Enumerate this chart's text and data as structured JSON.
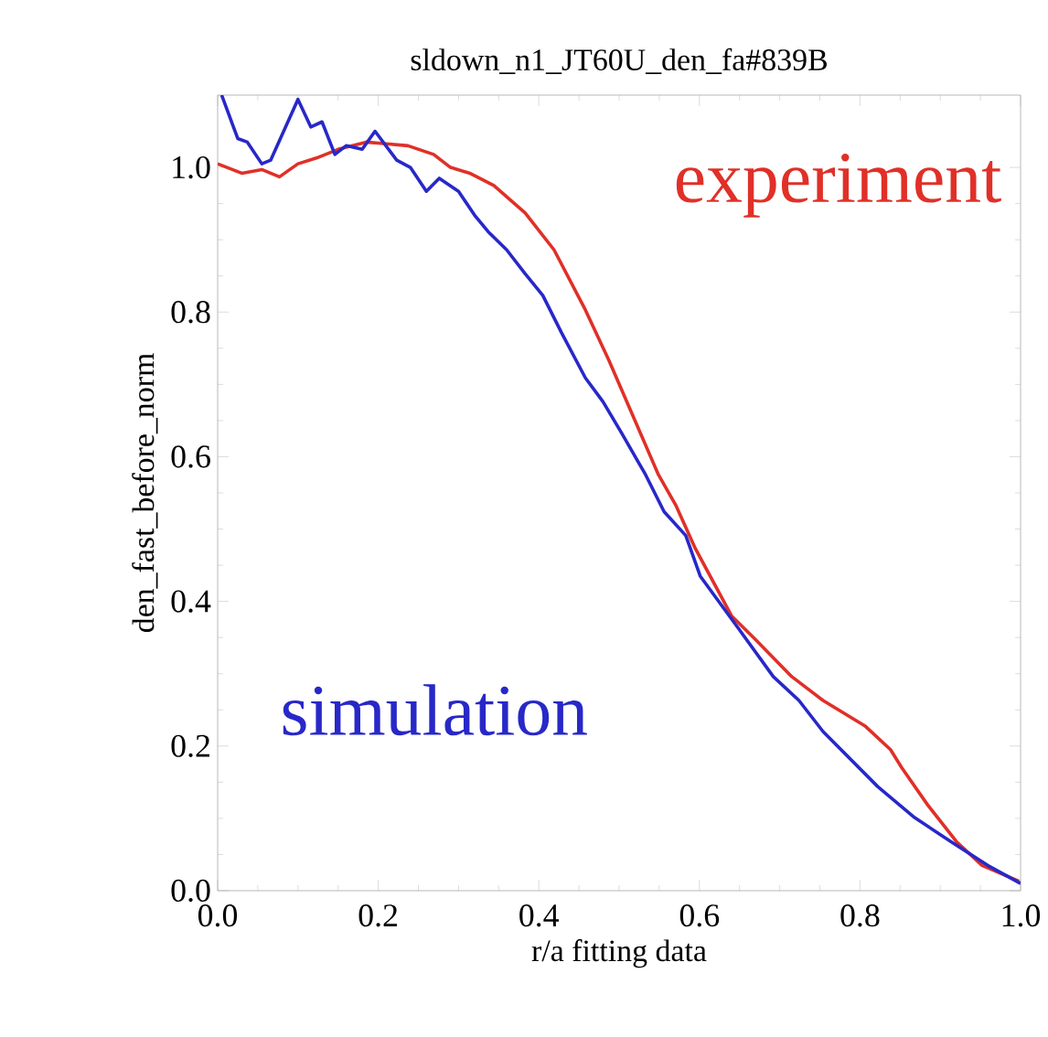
{
  "chart_data": {
    "type": "line",
    "title": "sldown_n1_JT60U_den_fa#839B",
    "xlabel": "r/a fitting data",
    "ylabel": "den_fast_before_norm",
    "xlim": [
      0,
      1
    ],
    "ylim": [
      0,
      1.1
    ],
    "xticks": [
      {
        "value": 0,
        "label": "0.0"
      },
      {
        "value": 0.2,
        "label": "0.2"
      },
      {
        "value": 0.4,
        "label": "0.4"
      },
      {
        "value": 0.6,
        "label": "0.6"
      },
      {
        "value": 0.8,
        "label": "0.8"
      },
      {
        "value": 1,
        "label": "1.0"
      }
    ],
    "yticks": [
      {
        "value": 0,
        "label": "0.0"
      },
      {
        "value": 0.2,
        "label": "0.2"
      },
      {
        "value": 0.4,
        "label": "0.4"
      },
      {
        "value": 0.6,
        "label": "0.6"
      },
      {
        "value": 0.8,
        "label": "0.8"
      },
      {
        "value": 1,
        "label": "1.0"
      }
    ],
    "legend": false,
    "grid": false,
    "marker": "none",
    "line_style": "solid",
    "series": [
      {
        "name": "experiment",
        "color": "#e03028",
        "x": [
          0,
          0.03,
          0.055,
          0.077,
          0.1,
          0.123,
          0.15,
          0.185,
          0.207,
          0.237,
          0.269,
          0.29,
          0.314,
          0.344,
          0.383,
          0.419,
          0.458,
          0.487,
          0.549,
          0.571,
          0.595,
          0.64,
          0.67,
          0.715,
          0.754,
          0.806,
          0.838,
          0.852,
          0.884,
          0.92,
          0.952,
          0.998
        ],
        "values": [
          1.005,
          0.992,
          0.997,
          0.987,
          1.005,
          1.013,
          1.025,
          1.035,
          1.033,
          1.03,
          1.018,
          1.0,
          0.992,
          0.975,
          0.937,
          0.886,
          0.803,
          0.734,
          0.575,
          0.532,
          0.473,
          0.38,
          0.347,
          0.296,
          0.263,
          0.228,
          0.195,
          0.17,
          0.119,
          0.068,
          0.035,
          0.013
        ]
      },
      {
        "name": "simulation",
        "color": "#2828c8",
        "x": [
          0.005,
          0.025,
          0.037,
          0.055,
          0.066,
          0.1,
          0.116,
          0.13,
          0.146,
          0.16,
          0.18,
          0.196,
          0.223,
          0.24,
          0.26,
          0.276,
          0.3,
          0.32,
          0.337,
          0.36,
          0.383,
          0.405,
          0.428,
          0.458,
          0.48,
          0.503,
          0.533,
          0.556,
          0.583,
          0.601,
          0.647,
          0.692,
          0.724,
          0.754,
          0.822,
          0.868,
          0.913,
          0.959,
          1.0
        ],
        "values": [
          1.1,
          1.04,
          1.035,
          1.005,
          1.01,
          1.094,
          1.056,
          1.063,
          1.018,
          1.03,
          1.025,
          1.05,
          1.01,
          1.0,
          0.967,
          0.985,
          0.967,
          0.934,
          0.911,
          0.886,
          0.853,
          0.823,
          0.772,
          0.709,
          0.676,
          0.633,
          0.575,
          0.524,
          0.491,
          0.435,
          0.365,
          0.296,
          0.263,
          0.22,
          0.144,
          0.101,
          0.068,
          0.035,
          0.01
        ]
      }
    ]
  }
}
